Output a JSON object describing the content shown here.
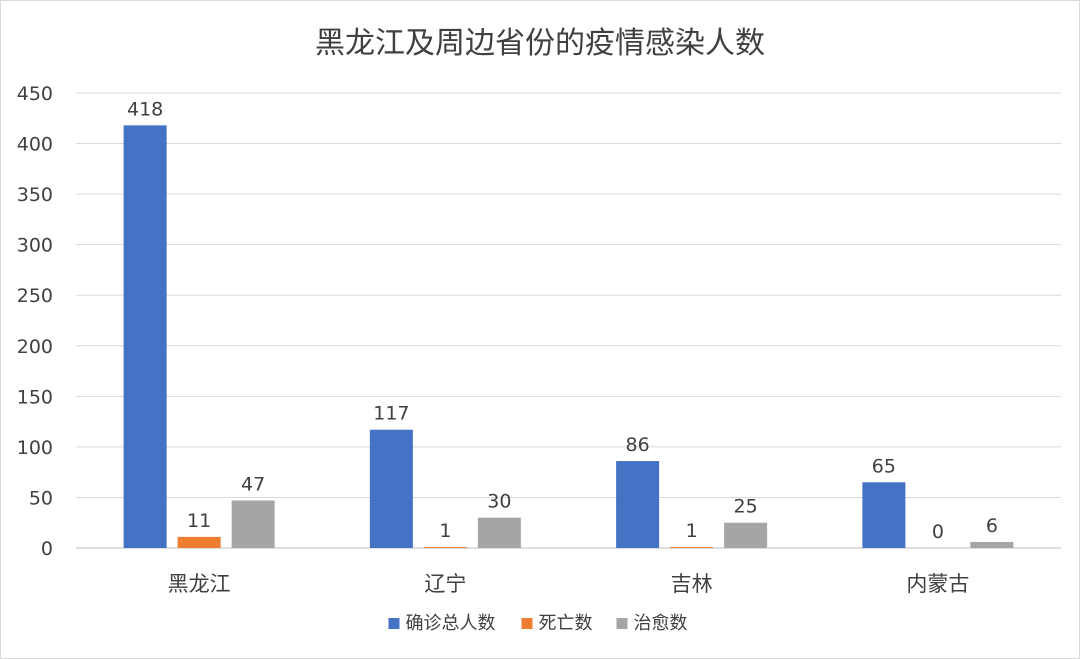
{
  "chart_data": {
    "type": "bar",
    "title": "黑龙江及周边省份的疫情感染人数",
    "categories": [
      "黑龙江",
      "辽宁",
      "吉林",
      "内蒙古"
    ],
    "series": [
      {
        "name": "确诊总人数",
        "values": [
          418,
          117,
          86,
          65
        ],
        "color": "#4472C4"
      },
      {
        "name": "死亡数",
        "values": [
          11,
          1,
          1,
          0
        ],
        "color": "#ED7D31"
      },
      {
        "name": "治愈数",
        "values": [
          47,
          30,
          25,
          6
        ],
        "color": "#A5A5A5"
      }
    ],
    "y_ticks": [
      "0",
      "50",
      "100",
      "150",
      "200",
      "250",
      "300",
      "350",
      "400",
      "450"
    ],
    "ylim": [
      0,
      450
    ],
    "grid": true,
    "legend_position": "bottom"
  }
}
